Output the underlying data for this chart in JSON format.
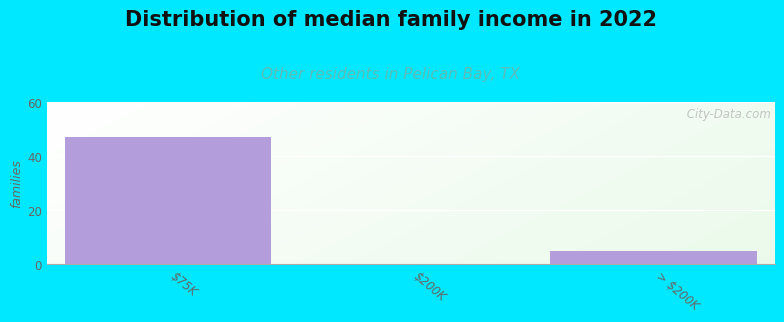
{
  "title": "Distribution of median family income in 2022",
  "subtitle": "Other residents in Pelican Bay, TX",
  "categories": [
    "$75K",
    "$200K",
    "> $200K"
  ],
  "values": [
    47,
    0,
    5
  ],
  "bar_color": "#b39ddb",
  "background_color": "#00e8ff",
  "plot_bg_left": "#e8f5e9",
  "plot_bg_right": "#f5fff5",
  "plot_bg_top": "#eaf5ea",
  "plot_bg_bottom": "#fafffe",
  "ylabel": "families",
  "ylim": [
    0,
    60
  ],
  "yticks": [
    0,
    20,
    40,
    60
  ],
  "watermark": " City-Data.com",
  "title_fontsize": 15,
  "subtitle_fontsize": 11,
  "subtitle_color": "#5bbcb8",
  "title_color": "#111111"
}
